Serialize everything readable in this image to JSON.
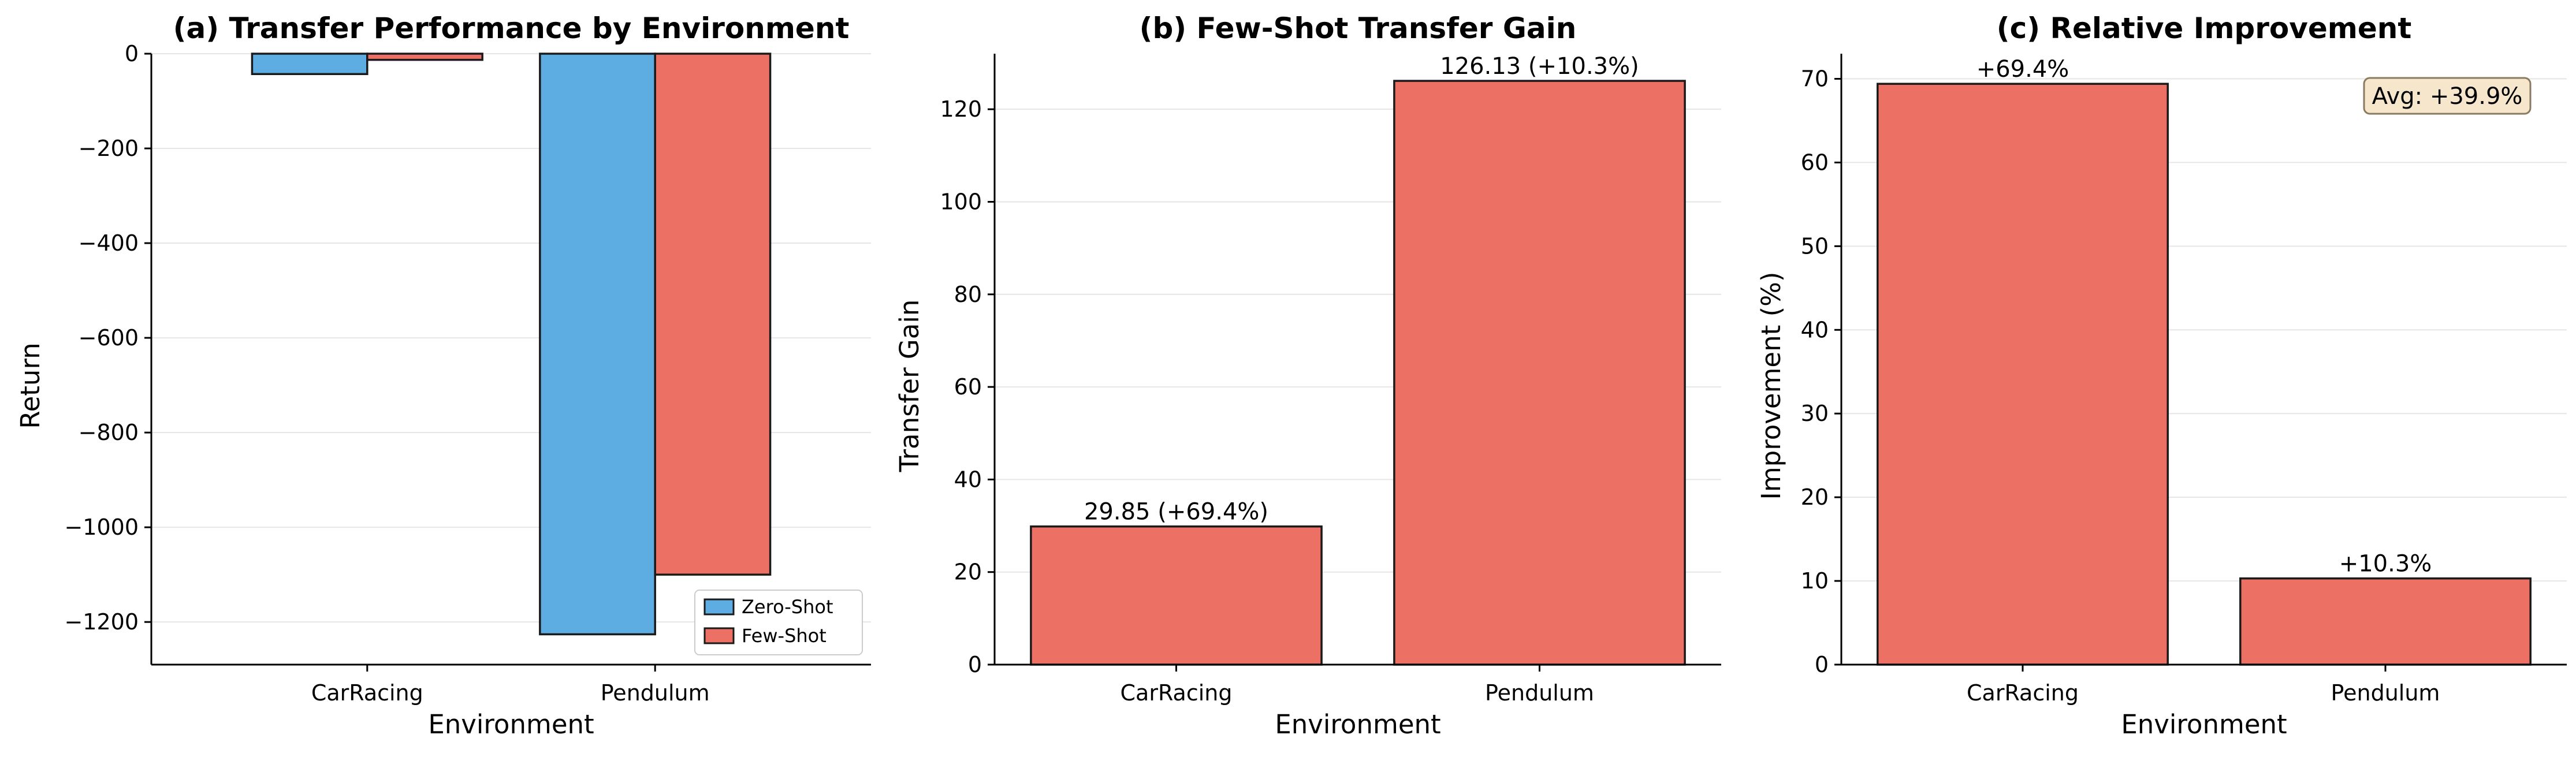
{
  "chart_data": [
    {
      "type": "bar",
      "title": "(a) Transfer Performance by Environment",
      "xlabel": "Environment",
      "ylabel": "Return",
      "categories": [
        "CarRacing",
        "Pendulum"
      ],
      "series": [
        {
          "name": "Zero-Shot",
          "values": [
            -43,
            -1226
          ],
          "color": "#5DADE2"
        },
        {
          "name": "Few-Shot",
          "values": [
            -13,
            -1100
          ],
          "color": "#EC7063"
        }
      ],
      "ylim": [
        -1290,
        0
      ],
      "yticks": [
        0,
        -200,
        -400,
        -600,
        -800,
        -1000,
        -1200
      ],
      "ytick_labels": [
        "0",
        "−200",
        "−400",
        "−600",
        "−800",
        "−1000",
        "−1200"
      ],
      "grid": true,
      "legend": "lower-right"
    },
    {
      "type": "bar",
      "title": "(b) Few-Shot Transfer Gain",
      "xlabel": "Environment",
      "ylabel": "Transfer Gain",
      "categories": [
        "CarRacing",
        "Pendulum"
      ],
      "values": [
        29.85,
        126.13
      ],
      "data_labels": [
        "29.85 (+69.4%)",
        "126.13 (+10.3%)"
      ],
      "color": "#EC7063",
      "ylim": [
        0,
        132
      ],
      "yticks": [
        0,
        20,
        40,
        60,
        80,
        100,
        120
      ],
      "ytick_labels": [
        "0",
        "20",
        "40",
        "60",
        "80",
        "100",
        "120"
      ],
      "grid": true
    },
    {
      "type": "bar",
      "title": "(c) Relative Improvement",
      "xlabel": "Environment",
      "ylabel": "Improvement (%)",
      "categories": [
        "CarRacing",
        "Pendulum"
      ],
      "values": [
        69.4,
        10.3
      ],
      "data_labels": [
        "+69.4%",
        "+10.3%"
      ],
      "color": "#EC7063",
      "ylim": [
        0,
        73
      ],
      "yticks": [
        0,
        10,
        20,
        30,
        40,
        50,
        60,
        70
      ],
      "ytick_labels": [
        "0",
        "10",
        "20",
        "30",
        "40",
        "50",
        "60",
        "70"
      ],
      "grid": true,
      "annotation": "Avg: +39.9%",
      "annotation_color": "#F5E6CC"
    }
  ]
}
